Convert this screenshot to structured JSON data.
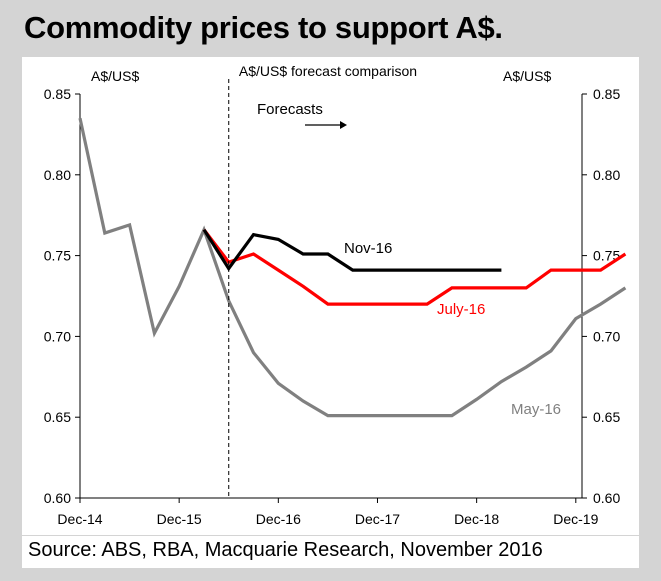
{
  "headline": "Commodity prices to support A$.",
  "source": "Source: ABS, RBA, Macquarie Research, November 2016",
  "chart_data": {
    "type": "line",
    "title": "A$/US$ forecast comparison",
    "ylabel_left": "A$/US$",
    "ylabel_right": "A$/US$",
    "ylim": [
      0.6,
      0.85
    ],
    "yticks": [
      "0.60",
      "0.65",
      "0.70",
      "0.75",
      "0.80",
      "0.85"
    ],
    "yticks_values": [
      0.6,
      0.65,
      0.7,
      0.75,
      0.8,
      0.85
    ],
    "xlim": [
      0,
      20.25
    ],
    "xticks": [
      {
        "label": "Dec-14",
        "x": 0
      },
      {
        "label": "Dec-15",
        "x": 4
      },
      {
        "label": "Dec-16",
        "x": 8
      },
      {
        "label": "Dec-17",
        "x": 12
      },
      {
        "label": "Dec-18",
        "x": 16
      },
      {
        "label": "Dec-19",
        "x": 20
      }
    ],
    "forecast_start_x": 6,
    "forecast_label": "Forecasts",
    "grid": false,
    "series": [
      {
        "name": "May-16",
        "label": "May-16",
        "color": "#808080",
        "points": [
          [
            0,
            0.835
          ],
          [
            1,
            0.764
          ],
          [
            2,
            0.769
          ],
          [
            3,
            0.702
          ],
          [
            4,
            0.731
          ],
          [
            5,
            0.766
          ],
          [
            6,
            0.722
          ],
          [
            7,
            0.69
          ],
          [
            8,
            0.671
          ],
          [
            9,
            0.66
          ],
          [
            10,
            0.651
          ],
          [
            11,
            0.651
          ],
          [
            12,
            0.651
          ],
          [
            13,
            0.651
          ],
          [
            14,
            0.651
          ],
          [
            15,
            0.651
          ],
          [
            16,
            0.661
          ],
          [
            17,
            0.672
          ],
          [
            18,
            0.681
          ],
          [
            19,
            0.691
          ],
          [
            20,
            0.711
          ],
          [
            21,
            0.72
          ],
          [
            22,
            0.73
          ]
        ]
      },
      {
        "name": "July-16",
        "label": "July-16",
        "color": "#ff0000",
        "points": [
          [
            5,
            0.766
          ],
          [
            6,
            0.746
          ],
          [
            7,
            0.751
          ],
          [
            8,
            0.741
          ],
          [
            9,
            0.731
          ],
          [
            10,
            0.72
          ],
          [
            11,
            0.72
          ],
          [
            12,
            0.72
          ],
          [
            13,
            0.72
          ],
          [
            14,
            0.72
          ],
          [
            15,
            0.73
          ],
          [
            16,
            0.73
          ],
          [
            17,
            0.73
          ],
          [
            18,
            0.73
          ],
          [
            19,
            0.741
          ],
          [
            20,
            0.741
          ],
          [
            21,
            0.741
          ],
          [
            22,
            0.751
          ]
        ]
      },
      {
        "name": "Nov-16",
        "label": "Nov-16",
        "color": "#000000",
        "points": [
          [
            5,
            0.766
          ],
          [
            6,
            0.742
          ],
          [
            7,
            0.763
          ],
          [
            8,
            0.76
          ],
          [
            9,
            0.751
          ],
          [
            10,
            0.751
          ],
          [
            11,
            0.741
          ],
          [
            12,
            0.741
          ],
          [
            13,
            0.741
          ],
          [
            14,
            0.741
          ],
          [
            15,
            0.741
          ],
          [
            16,
            0.741
          ],
          [
            17,
            0.741
          ]
        ]
      }
    ]
  }
}
